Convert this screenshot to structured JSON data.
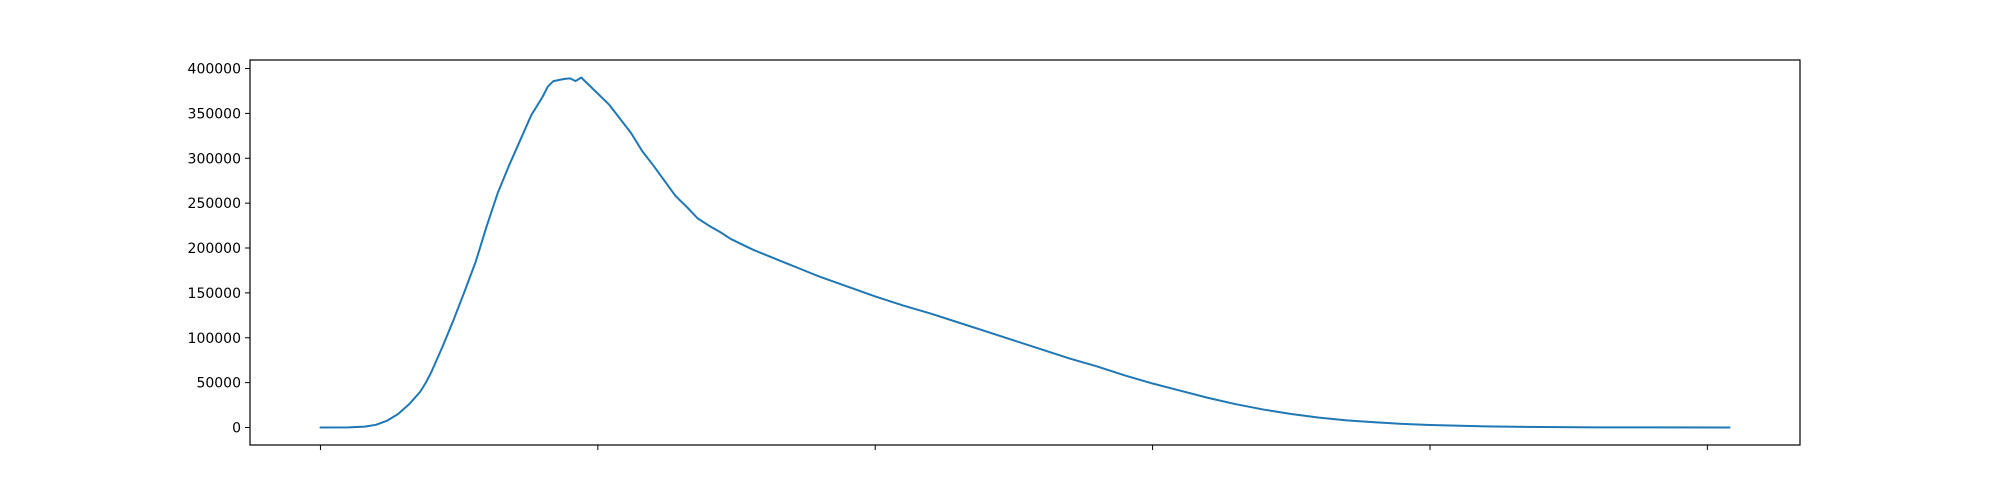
{
  "chart_data": {
    "type": "line",
    "title": "",
    "xlabel": "",
    "ylabel": "",
    "grid": false,
    "legend": "none",
    "x_tick_labels_shown": false,
    "x_ticks": [
      0,
      50,
      100,
      150,
      200,
      250
    ],
    "xlim": [
      -12.7,
      266.7
    ],
    "ylim": [
      -19500,
      409500
    ],
    "y_ticks": [
      0,
      50000,
      100000,
      150000,
      200000,
      250000,
      300000,
      350000,
      400000
    ],
    "y_tick_labels": [
      "0",
      "50000",
      "100000",
      "150000",
      "200000",
      "250000",
      "300000",
      "350000",
      "400000"
    ],
    "colors": {
      "line": "#1f77b4",
      "axes": "#000000"
    },
    "series": [
      {
        "points": [
          [
            0,
            0
          ],
          [
            5,
            100
          ],
          [
            8,
            1000
          ],
          [
            10,
            3000
          ],
          [
            12,
            7500
          ],
          [
            14,
            15000
          ],
          [
            16,
            26000
          ],
          [
            18,
            40000
          ],
          [
            19,
            50000
          ],
          [
            20,
            62000
          ],
          [
            22,
            90000
          ],
          [
            24,
            120000
          ],
          [
            26,
            152000
          ],
          [
            28,
            185000
          ],
          [
            30,
            225000
          ],
          [
            32,
            262000
          ],
          [
            34,
            292000
          ],
          [
            36,
            320000
          ],
          [
            38,
            348000
          ],
          [
            40,
            368000
          ],
          [
            41,
            380000
          ],
          [
            42,
            386000
          ],
          [
            44,
            388500
          ],
          [
            45,
            389000
          ],
          [
            46,
            386000
          ],
          [
            47,
            390000
          ],
          [
            48,
            384000
          ],
          [
            50,
            372000
          ],
          [
            52,
            360000
          ],
          [
            54,
            344000
          ],
          [
            56,
            328000
          ],
          [
            58,
            308000
          ],
          [
            60,
            292000
          ],
          [
            62,
            275000
          ],
          [
            64,
            258000
          ],
          [
            66,
            246000
          ],
          [
            68,
            233000
          ],
          [
            70,
            225000
          ],
          [
            72,
            218000
          ],
          [
            74,
            210000
          ],
          [
            76,
            204000
          ],
          [
            78,
            198000
          ],
          [
            80,
            193000
          ],
          [
            82,
            188000
          ],
          [
            84,
            183000
          ],
          [
            86,
            178000
          ],
          [
            88,
            173000
          ],
          [
            90,
            168000
          ],
          [
            95,
            157000
          ],
          [
            100,
            146000
          ],
          [
            105,
            136000
          ],
          [
            110,
            127000
          ],
          [
            115,
            117000
          ],
          [
            120,
            107000
          ],
          [
            125,
            97000
          ],
          [
            130,
            87000
          ],
          [
            135,
            77000
          ],
          [
            140,
            68000
          ],
          [
            145,
            58000
          ],
          [
            150,
            49000
          ],
          [
            155,
            41000
          ],
          [
            160,
            33000
          ],
          [
            165,
            26000
          ],
          [
            170,
            20000
          ],
          [
            175,
            15000
          ],
          [
            180,
            11000
          ],
          [
            185,
            8000
          ],
          [
            190,
            5800
          ],
          [
            195,
            4000
          ],
          [
            200,
            2800
          ],
          [
            210,
            1200
          ],
          [
            220,
            500
          ],
          [
            230,
            200
          ],
          [
            240,
            80
          ],
          [
            254,
            20
          ]
        ]
      }
    ]
  }
}
